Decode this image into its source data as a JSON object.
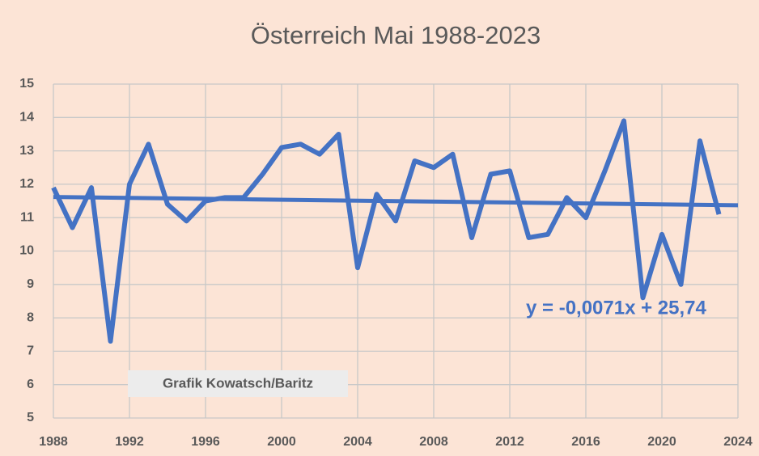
{
  "chart_data": {
    "type": "line",
    "title": "Österreich Mai 1988-2023",
    "x": [
      1988,
      1989,
      1990,
      1991,
      1992,
      1993,
      1994,
      1995,
      1996,
      1997,
      1998,
      1999,
      2000,
      2001,
      2002,
      2003,
      2004,
      2005,
      2006,
      2007,
      2008,
      2009,
      2010,
      2011,
      2012,
      2013,
      2014,
      2015,
      2016,
      2017,
      2018,
      2019,
      2020,
      2021,
      2022,
      2023
    ],
    "values": [
      11.9,
      10.7,
      11.9,
      7.3,
      12.0,
      13.2,
      11.4,
      10.9,
      11.5,
      11.6,
      11.6,
      12.3,
      13.1,
      13.2,
      12.9,
      13.5,
      9.5,
      11.7,
      10.9,
      12.7,
      12.5,
      12.9,
      10.4,
      12.3,
      12.4,
      10.4,
      10.5,
      11.6,
      11.0,
      12.4,
      13.9,
      8.6,
      10.5,
      9.0,
      13.3,
      11.1
    ],
    "color": "#4472c4",
    "trendline": {
      "x": [
        1988,
        2024
      ],
      "values": [
        11.62,
        11.37
      ],
      "label": "y = -0,0071x + 25,74"
    },
    "watermark": "Grafik Kowatsch/Baritz",
    "xlim": [
      1988,
      2024
    ],
    "xticks": [
      1988,
      1992,
      1996,
      2000,
      2004,
      2008,
      2012,
      2016,
      2020,
      2024
    ],
    "ylim": [
      5,
      15
    ],
    "yticks": [
      5,
      6,
      7,
      8,
      9,
      10,
      11,
      12,
      13,
      14,
      15
    ],
    "grid": true
  }
}
